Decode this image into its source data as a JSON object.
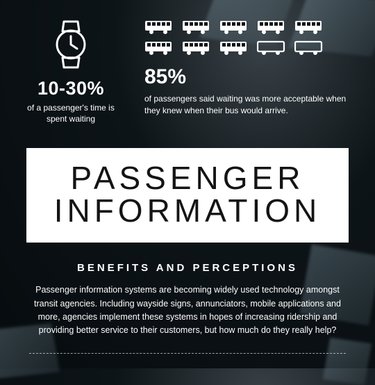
{
  "colors": {
    "background_dark": "#060b0e",
    "background_mid": "#0d1418",
    "background_light_spot": "#3a4348",
    "text": "#ffffff",
    "title_bg": "#ffffff",
    "title_text": "#141414",
    "divider": "rgba(255,255,255,0.6)"
  },
  "watch_stat": {
    "icon": "wristwatch-icon",
    "value": "10-30%",
    "caption": "of a passenger's time is spent waiting"
  },
  "bus_stat": {
    "icon": "bus-icon",
    "total_icons": 10,
    "filled_icons": 8,
    "icon_layout": {
      "rows": 2,
      "cols": 5
    },
    "value": "85%",
    "caption": "of passengers said waiting was more acceptable when they knew when their bus would arrive."
  },
  "title": {
    "line1": "PASSENGER",
    "line2": "INFORMATION",
    "fontsize": 46,
    "letter_spacing": 6
  },
  "subhead": "BENEFITS AND PERCEPTIONS",
  "body": "Passenger information systems are becoming widely used technology amongst transit agencies. Including wayside signs, annunciators, mobile applications and more, agencies implement these systems in hopes of increasing ridership and providing better service to their customers, but how much do they really help?"
}
